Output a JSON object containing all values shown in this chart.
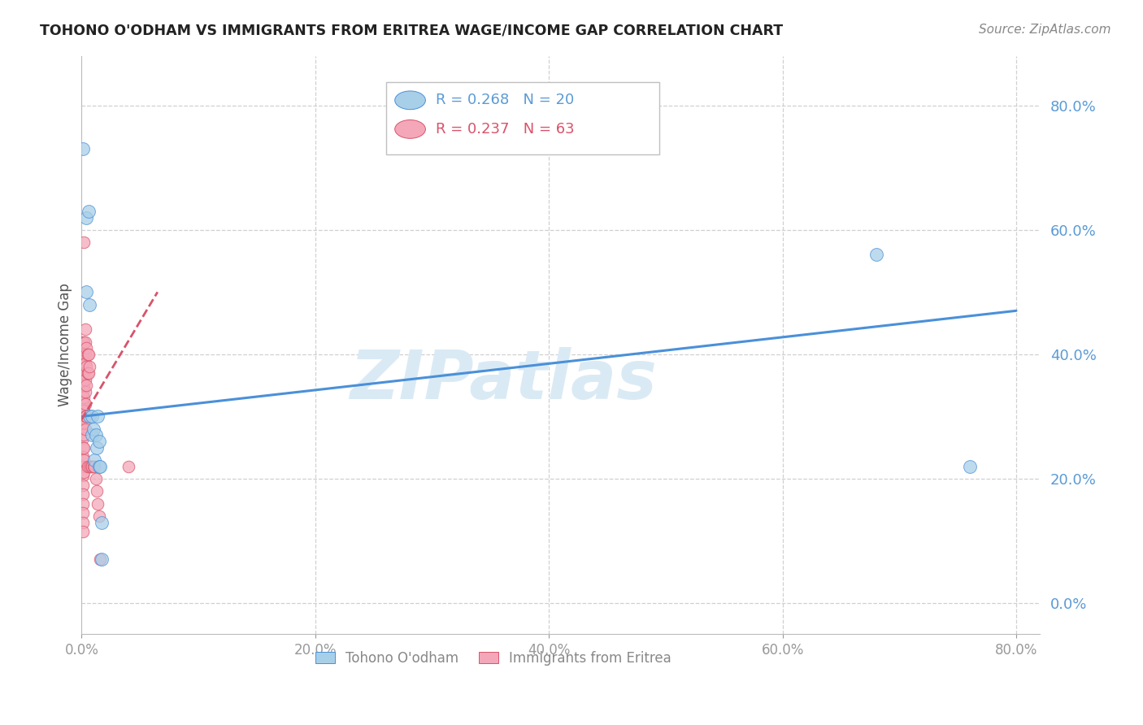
{
  "title": "TOHONO O'ODHAM VS IMMIGRANTS FROM ERITREA WAGE/INCOME GAP CORRELATION CHART",
  "source": "Source: ZipAtlas.com",
  "ylabel": "Wage/Income Gap",
  "xlim": [
    0.0,
    0.82
  ],
  "ylim": [
    -0.05,
    0.88
  ],
  "xticks": [
    0.0,
    0.2,
    0.4,
    0.6,
    0.8
  ],
  "yticks": [
    0.0,
    0.2,
    0.4,
    0.6,
    0.8
  ],
  "legend1_r": "0.268",
  "legend1_n": "20",
  "legend2_r": "0.237",
  "legend2_n": "63",
  "legend1_label": "Tohono O'odham",
  "legend2_label": "Immigrants from Eritrea",
  "blue_color": "#a8cfe8",
  "pink_color": "#f4a7b9",
  "regression_blue_color": "#4a90d9",
  "regression_pink_color": "#d9536a",
  "axis_color": "#5b9bd5",
  "watermark": "ZIPatlas",
  "watermark_color": "#daeaf5",
  "background_color": "#ffffff",
  "grid_color": "#d0d0d0",
  "blue_scatter": [
    [
      0.001,
      0.73
    ],
    [
      0.004,
      0.62
    ],
    [
      0.004,
      0.5
    ],
    [
      0.006,
      0.63
    ],
    [
      0.007,
      0.48
    ],
    [
      0.007,
      0.3
    ],
    [
      0.009,
      0.3
    ],
    [
      0.009,
      0.27
    ],
    [
      0.01,
      0.28
    ],
    [
      0.011,
      0.23
    ],
    [
      0.012,
      0.27
    ],
    [
      0.013,
      0.25
    ],
    [
      0.014,
      0.3
    ],
    [
      0.015,
      0.26
    ],
    [
      0.015,
      0.22
    ],
    [
      0.016,
      0.22
    ],
    [
      0.017,
      0.13
    ],
    [
      0.017,
      0.07
    ],
    [
      0.68,
      0.56
    ],
    [
      0.76,
      0.22
    ]
  ],
  "pink_scatter": [
    [
      0.001,
      0.42
    ],
    [
      0.001,
      0.4
    ],
    [
      0.001,
      0.385
    ],
    [
      0.001,
      0.37
    ],
    [
      0.001,
      0.355
    ],
    [
      0.001,
      0.34
    ],
    [
      0.001,
      0.325
    ],
    [
      0.001,
      0.31
    ],
    [
      0.001,
      0.295
    ],
    [
      0.001,
      0.28
    ],
    [
      0.001,
      0.265
    ],
    [
      0.001,
      0.25
    ],
    [
      0.001,
      0.235
    ],
    [
      0.001,
      0.22
    ],
    [
      0.001,
      0.205
    ],
    [
      0.001,
      0.19
    ],
    [
      0.001,
      0.175
    ],
    [
      0.001,
      0.16
    ],
    [
      0.001,
      0.145
    ],
    [
      0.001,
      0.13
    ],
    [
      0.001,
      0.115
    ],
    [
      0.002,
      0.58
    ],
    [
      0.002,
      0.42
    ],
    [
      0.002,
      0.39
    ],
    [
      0.002,
      0.37
    ],
    [
      0.002,
      0.35
    ],
    [
      0.002,
      0.33
    ],
    [
      0.002,
      0.31
    ],
    [
      0.002,
      0.29
    ],
    [
      0.002,
      0.27
    ],
    [
      0.002,
      0.25
    ],
    [
      0.002,
      0.23
    ],
    [
      0.002,
      0.21
    ],
    [
      0.003,
      0.44
    ],
    [
      0.003,
      0.42
    ],
    [
      0.003,
      0.4
    ],
    [
      0.003,
      0.385
    ],
    [
      0.003,
      0.36
    ],
    [
      0.003,
      0.34
    ],
    [
      0.003,
      0.32
    ],
    [
      0.003,
      0.3
    ],
    [
      0.003,
      0.28
    ],
    [
      0.004,
      0.41
    ],
    [
      0.004,
      0.38
    ],
    [
      0.004,
      0.35
    ],
    [
      0.004,
      0.3
    ],
    [
      0.005,
      0.4
    ],
    [
      0.005,
      0.37
    ],
    [
      0.005,
      0.22
    ],
    [
      0.006,
      0.4
    ],
    [
      0.006,
      0.37
    ],
    [
      0.007,
      0.38
    ],
    [
      0.007,
      0.22
    ],
    [
      0.008,
      0.22
    ],
    [
      0.009,
      0.22
    ],
    [
      0.01,
      0.22
    ],
    [
      0.011,
      0.22
    ],
    [
      0.012,
      0.2
    ],
    [
      0.013,
      0.18
    ],
    [
      0.014,
      0.16
    ],
    [
      0.015,
      0.14
    ],
    [
      0.016,
      0.07
    ],
    [
      0.04,
      0.22
    ]
  ],
  "blue_line_x": [
    0.0,
    0.8
  ],
  "blue_line_y": [
    0.3,
    0.47
  ],
  "pink_line_x": [
    0.0,
    0.065
  ],
  "pink_line_y": [
    0.295,
    0.5
  ]
}
